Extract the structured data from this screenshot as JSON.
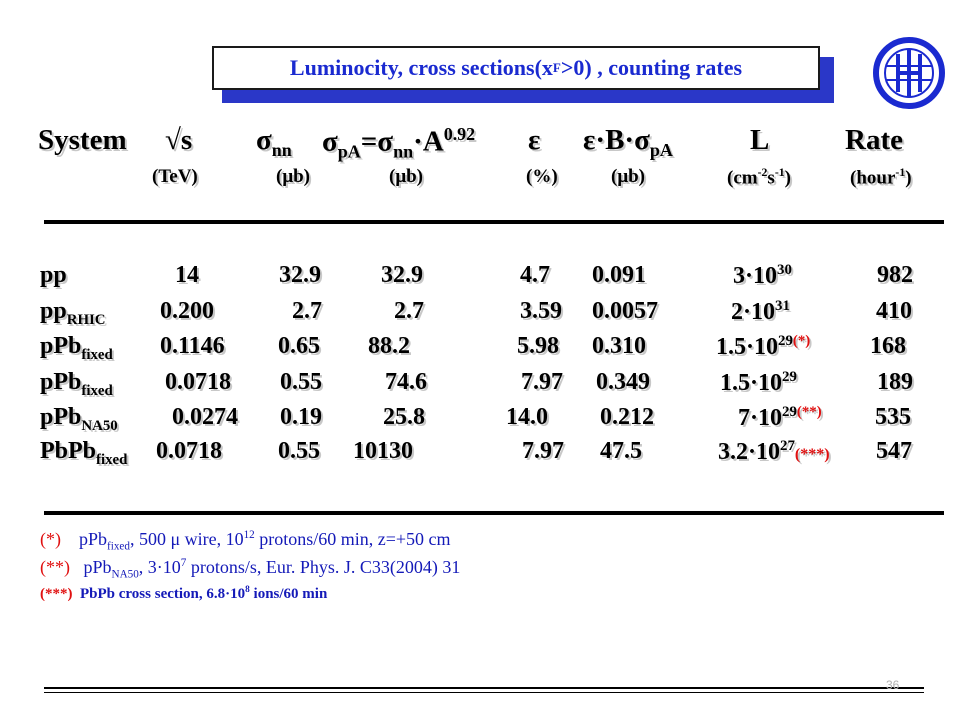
{
  "title": {
    "pre": "Luminocity, cross sections(x",
    "sub": "F",
    "post": ">0) , counting rates"
  },
  "header": {
    "system": "System",
    "sqrt_s": "√s",
    "sigma": "σ",
    "nn": "nn",
    "pA": "pA",
    "eq": "=",
    "A": "A",
    "exp": "0.92",
    "dot": "·",
    "eps": "ε",
    "B": "B",
    "L": "L",
    "rate": "Rate"
  },
  "units": [
    "(TeV)",
    "(μb)",
    "(μb)",
    "(%)",
    "(μb)",
    "(cm",
    "-2",
    "s",
    "-1",
    ")",
    "(hour",
    "-1",
    ")"
  ],
  "rows": [
    {
      "base": "pp",
      "sub": "",
      "cells": [
        "14",
        "32.9",
        "32.9",
        "4.7",
        "0.091"
      ],
      "L": {
        "m": "3·10",
        "e": "30",
        "mark": ""
      },
      "rate": "982"
    },
    {
      "base": "pp",
      "sub": "RHIC",
      "cells": [
        "0.200",
        "2.7",
        "2.7",
        "3.59",
        "0.0057"
      ],
      "L": {
        "m": "2·10",
        "e": "31",
        "mark": ""
      },
      "rate": "410"
    },
    {
      "base": "pPb",
      "sub": "fixed",
      "cells": [
        "0.1146",
        "0.65",
        "88.2",
        "5.98",
        "0.310"
      ],
      "L": {
        "m": "1.5·10",
        "e": "29",
        "mark": "(*)"
      },
      "rate": "168"
    },
    {
      "base": "pPb",
      "sub": "fixed",
      "cells": [
        "0.0718",
        "0.55",
        "74.6",
        "7.97",
        "0.349"
      ],
      "L": {
        "m": "1.5·10",
        "e": "29",
        "mark": ""
      },
      "rate": "189"
    },
    {
      "base": "pPb",
      "sub": "NA50",
      "cells": [
        "0.0274",
        "0.19",
        "25.8",
        "14.0",
        "0.212"
      ],
      "L": {
        "m": "7·10",
        "e": "29",
        "mark": "(**)"
      },
      "rate": "535"
    },
    {
      "base": "PbPb",
      "sub": "fixed",
      "cells": [
        "0.0718",
        "0.55",
        "10130",
        "7.97",
        "47.5"
      ],
      "L": {
        "m": "3.2·10",
        "e": "27",
        "mark": "(***)"
      },
      "rate": "547"
    }
  ],
  "footnotes": [
    {
      "mark": "(*)",
      "parts": [
        "pPb",
        "fixed",
        ", 500 μ wire, 10",
        "12",
        " protons/60 min, z=+50 cm"
      ]
    },
    {
      "mark": "(**)",
      "parts": [
        "pPb",
        "NA50",
        ", 3·10",
        "7",
        " protons/s, Eur. Phys. J. C33(2004) 31"
      ]
    },
    {
      "mark": "(***)",
      "parts": [
        "PbPb cross section, 6.8·10",
        "8",
        " ions/60 min"
      ]
    }
  ],
  "page_number": "36",
  "colors": {
    "title_text": "#1a2ad0",
    "title_shadow": "#2a37c8",
    "footnote_text": "#141ab8",
    "mark_red": "#e01010"
  }
}
